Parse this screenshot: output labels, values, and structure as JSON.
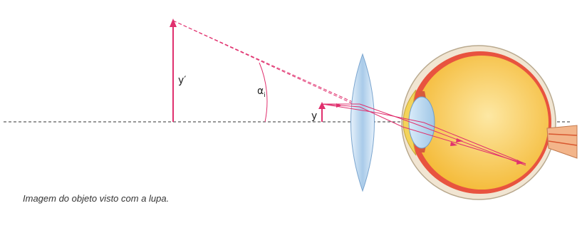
{
  "diagram": {
    "caption": "Imagem do objeto visto com a lupa.",
    "labels": {
      "image_height": "y′",
      "object_height": "y",
      "angle_symbol": "α",
      "angle_subscript": "i"
    },
    "colors": {
      "ray": "#e0306e",
      "arrow": "#e0306e",
      "axis": "#333333",
      "lens_fill": "#bcd6ef",
      "eye_body": "#f6c24a",
      "sclera": "#f1e5d2"
    }
  }
}
